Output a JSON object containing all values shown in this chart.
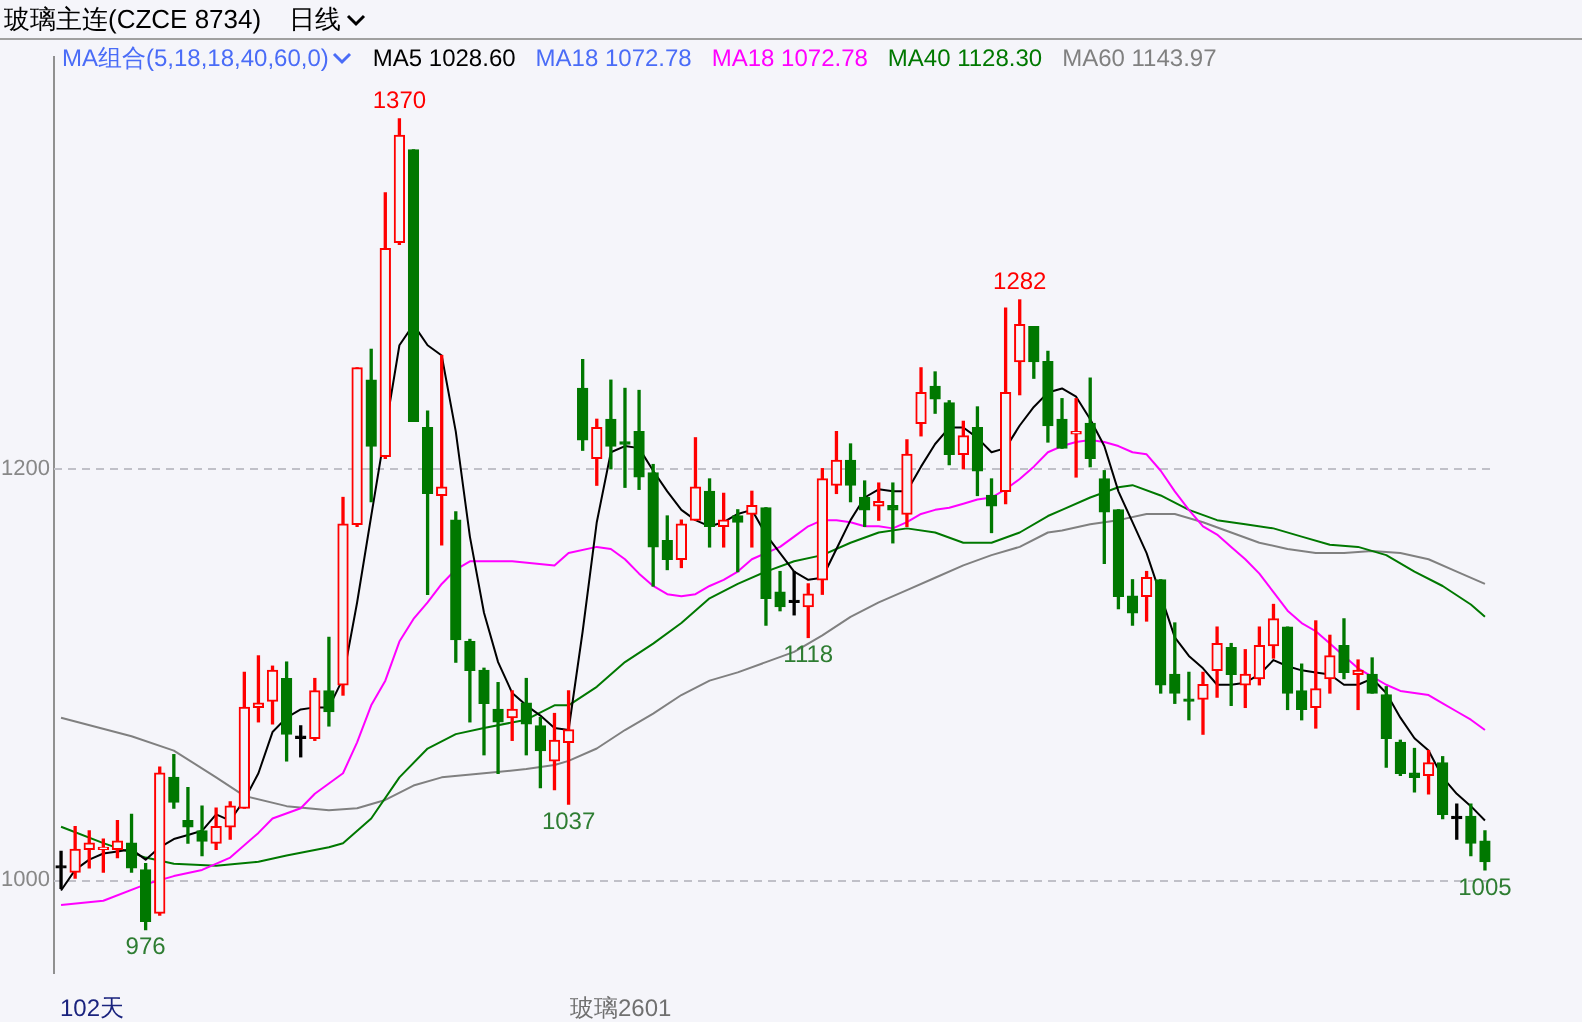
{
  "chart_data": {
    "type": "candlestick",
    "title": "玻璃主连(CZCE 8734)",
    "subtitle": "日线",
    "legend_title": "MA组合(5,18,18,40,60,0)",
    "legend": "top left",
    "grid": "y",
    "marker": "none",
    "tick_labels": "y",
    "categories": [
      null,
      null,
      null,
      null,
      null,
      null,
      null,
      null,
      null,
      null,
      null,
      null,
      null,
      null,
      null,
      null,
      null,
      null,
      null,
      null,
      null,
      null,
      null,
      null,
      null,
      null,
      null,
      null,
      null,
      null,
      null,
      null,
      null,
      null,
      null,
      null,
      null,
      null,
      null,
      null,
      null,
      null,
      null,
      null,
      null,
      null,
      null,
      null,
      null,
      null,
      null,
      null,
      null,
      null,
      null,
      null,
      null,
      null,
      null,
      null,
      null,
      null,
      null,
      null,
      null,
      null,
      null,
      null,
      null,
      null,
      null,
      null,
      null,
      null,
      null,
      null,
      null,
      null,
      null,
      null,
      null,
      null,
      null,
      null,
      null,
      null,
      null,
      null,
      null,
      null,
      null,
      null,
      null,
      null,
      null,
      null,
      null,
      null,
      null,
      null,
      null,
      null
    ],
    "ohlc": [
      [
        1006,
        1014,
        996,
        1006
      ],
      [
        1004,
        1026,
        1001,
        1015
      ],
      [
        1015,
        1024,
        1006,
        1018
      ],
      [
        1015,
        1020,
        1004,
        1016
      ],
      [
        1015,
        1029,
        1011,
        1019
      ],
      [
        1018,
        1032,
        1004,
        1006
      ],
      [
        1005,
        1008,
        976,
        980
      ],
      [
        984,
        1055,
        983,
        1052
      ],
      [
        1050,
        1061,
        1035,
        1038
      ],
      [
        1029,
        1045,
        1018,
        1026
      ],
      [
        1024,
        1036,
        1012,
        1019
      ],
      [
        1018,
        1035,
        1015,
        1026
      ],
      [
        1026,
        1038,
        1020,
        1036
      ],
      [
        1035,
        1101,
        1035,
        1084
      ],
      [
        1084,
        1109,
        1077,
        1086
      ],
      [
        1087,
        1104,
        1076,
        1102
      ],
      [
        1098,
        1106,
        1058,
        1071
      ],
      [
        1069,
        1075,
        1060,
        1069
      ],
      [
        1069,
        1098,
        1068,
        1092
      ],
      [
        1092,
        1118,
        1075,
        1082
      ],
      [
        1095,
        1186,
        1090,
        1173
      ],
      [
        1173,
        1249,
        1172,
        1249
      ],
      [
        1243,
        1258,
        1184,
        1211
      ],
      [
        1206,
        1334,
        1205,
        1307
      ],
      [
        1310,
        1370,
        1309,
        1362
      ],
      [
        1355,
        1355,
        1223,
        1223
      ],
      [
        1220,
        1228,
        1139,
        1188
      ],
      [
        1187,
        1255,
        1163,
        1191
      ],
      [
        1175,
        1179,
        1106,
        1117
      ],
      [
        1116,
        1117,
        1077,
        1102
      ],
      [
        1102,
        1103,
        1061,
        1086
      ],
      [
        1083,
        1096,
        1052,
        1077
      ],
      [
        1079,
        1092,
        1068,
        1083
      ],
      [
        1086,
        1098,
        1061,
        1076
      ],
      [
        1075,
        1079,
        1045,
        1063
      ],
      [
        1058,
        1081,
        1044,
        1068
      ],
      [
        1067,
        1092,
        1037,
        1073
      ],
      [
        1239,
        1253,
        1209,
        1214
      ],
      [
        1205,
        1224,
        1192,
        1220
      ],
      [
        1224,
        1243,
        1200,
        1211
      ],
      [
        1213,
        1239,
        1191,
        1212
      ],
      [
        1218,
        1238,
        1190,
        1196
      ],
      [
        1198,
        1202,
        1143,
        1162
      ],
      [
        1165,
        1177,
        1151,
        1156
      ],
      [
        1156,
        1175,
        1152,
        1173
      ],
      [
        1175,
        1215,
        1175,
        1191
      ],
      [
        1189,
        1195,
        1162,
        1172
      ],
      [
        1172,
        1188,
        1162,
        1175
      ],
      [
        1177,
        1180,
        1150,
        1174
      ],
      [
        1178,
        1189,
        1162,
        1182
      ],
      [
        1181,
        1181,
        1124,
        1137
      ],
      [
        1140,
        1150,
        1131,
        1133
      ],
      [
        1135,
        1150,
        1129,
        1135
      ],
      [
        1133,
        1144,
        1118,
        1139
      ],
      [
        1146,
        1200,
        1139,
        1195
      ],
      [
        1192,
        1218,
        1188,
        1204
      ],
      [
        1204,
        1212,
        1184,
        1192
      ],
      [
        1186,
        1194,
        1172,
        1180
      ],
      [
        1182,
        1193,
        1175,
        1184
      ],
      [
        1182,
        1193,
        1164,
        1180
      ],
      [
        1178,
        1214,
        1172,
        1207
      ],
      [
        1222,
        1249,
        1216,
        1237
      ],
      [
        1240,
        1247,
        1227,
        1234
      ],
      [
        1232,
        1233,
        1202,
        1207
      ],
      [
        1207,
        1223,
        1200,
        1216
      ],
      [
        1220,
        1230,
        1187,
        1199
      ],
      [
        1187,
        1195,
        1169,
        1182
      ],
      [
        1189,
        1278,
        1183,
        1237
      ],
      [
        1252,
        1282,
        1236,
        1270
      ],
      [
        1269,
        1269,
        1244,
        1252
      ],
      [
        1252,
        1257,
        1213,
        1221
      ],
      [
        1224,
        1234,
        1210,
        1210
      ],
      [
        1217,
        1234,
        1196,
        1218
      ],
      [
        1222,
        1244,
        1201,
        1205
      ],
      [
        1195,
        1199,
        1154,
        1179
      ],
      [
        1180,
        1180,
        1132,
        1138
      ],
      [
        1138,
        1146,
        1124,
        1130
      ],
      [
        1138,
        1150,
        1126,
        1147
      ],
      [
        1146,
        1146,
        1091,
        1095
      ],
      [
        1100,
        1125,
        1086,
        1091
      ],
      [
        1088,
        1101,
        1078,
        1087
      ],
      [
        1088,
        1101,
        1071,
        1095
      ],
      [
        1102,
        1123,
        1089,
        1115
      ],
      [
        1113,
        1115,
        1085,
        1100
      ],
      [
        1095,
        1112,
        1084,
        1100
      ],
      [
        1098,
        1123,
        1095,
        1114
      ],
      [
        1114,
        1134,
        1108,
        1127
      ],
      [
        1123,
        1123,
        1083,
        1091
      ],
      [
        1092,
        1105,
        1078,
        1083
      ],
      [
        1084,
        1126,
        1074,
        1093
      ],
      [
        1098,
        1119,
        1091,
        1109
      ],
      [
        1114,
        1127,
        1098,
        1101
      ],
      [
        1100,
        1107,
        1083,
        1102
      ],
      [
        1100,
        1108,
        1091,
        1091
      ],
      [
        1090,
        1094,
        1055,
        1069
      ],
      [
        1067,
        1068,
        1051,
        1052
      ],
      [
        1052,
        1064,
        1043,
        1050
      ],
      [
        1051,
        1063,
        1042,
        1057
      ],
      [
        1057,
        1060,
        1030,
        1032
      ],
      [
        1030,
        1037,
        1020,
        1030
      ],
      [
        1031,
        1037,
        1012,
        1018
      ],
      [
        1019,
        1024,
        1005,
        1009
      ]
    ],
    "colors": [
      "#000000",
      "#ff0000",
      "#ff0000",
      "#ff0000",
      "#ff0000",
      "#007800",
      "#007800",
      "#ff0000",
      "#007800",
      "#007800",
      "#007800",
      "#ff0000",
      "#ff0000",
      "#ff0000",
      "#ff0000",
      "#ff0000",
      "#007800",
      "#000000",
      "#ff0000",
      "#007800",
      "#ff0000",
      "#ff0000",
      "#007800",
      "#ff0000",
      "#ff0000",
      "#007800",
      "#007800",
      "#ff0000",
      "#007800",
      "#007800",
      "#007800",
      "#007800",
      "#ff0000",
      "#007800",
      "#007800",
      "#ff0000",
      "#ff0000",
      "#007800",
      "#ff0000",
      "#007800",
      "#007800",
      "#007800",
      "#007800",
      "#007800",
      "#ff0000",
      "#ff0000",
      "#007800",
      "#ff0000",
      "#007800",
      "#ff0000",
      "#007800",
      "#007800",
      "#000000",
      "#ff0000",
      "#ff0000",
      "#ff0000",
      "#007800",
      "#007800",
      "#ff0000",
      "#007800",
      "#ff0000",
      "#ff0000",
      "#007800",
      "#007800",
      "#ff0000",
      "#007800",
      "#007800",
      "#ff0000",
      "#ff0000",
      "#007800",
      "#007800",
      "#007800",
      "#ff0000",
      "#007800",
      "#007800",
      "#007800",
      "#007800",
      "#ff0000",
      "#007800",
      "#007800",
      "#007800",
      "#ff0000",
      "#ff0000",
      "#007800",
      "#ff0000",
      "#ff0000",
      "#ff0000",
      "#007800",
      "#007800",
      "#ff0000",
      "#ff0000",
      "#007800",
      "#ff0000",
      "#007800",
      "#007800",
      "#007800",
      "#007800",
      "#ff0000",
      "#007800",
      "#000000",
      "#007800",
      "#007800"
    ],
    "series": [
      {
        "type": "line",
        "name": "MA5 1028.60",
        "color": "#000000",
        "values": [
          995,
          1005,
          1010,
          1013,
          1014,
          1015,
          1010,
          1016,
          1020,
          1022,
          1024,
          1032,
          1029,
          1039,
          1052,
          1072,
          1079,
          1083,
          1084,
          1084,
          1098,
          1135,
          1177,
          null,
          1260,
          1270,
          1260,
          1255,
          1218,
          1167,
          1130,
          1106,
          1091,
          1085,
          1080,
          1074,
          1073,
          1121,
          1174,
          1208,
          1211,
          1210,
          1199,
          1189,
          1180,
          1175,
          1172,
          1174,
          1178,
          1180,
          1168,
          1159,
          1150,
          1146,
          1147,
          1161,
          1175,
          1186,
          1190,
          1189,
          1189,
          1201,
          1212,
          1220,
          1220,
          1215,
          1208,
          1210,
          1221,
          1230,
          1237,
          1239,
          1235,
          1224,
          1211,
          1189,
          1174,
          1159,
          null,
          1118,
          1109,
          1103,
          1095,
          1095,
          1096,
          1100,
          1107,
          1104,
          1102,
          1101,
          1100,
          1095,
          1095,
          1098,
          1091,
          1079,
          1069,
          1063,
          1050,
          1042,
          1036,
          1029
        ]
      },
      {
        "type": "line",
        "name": "MA18 1072.78",
        "color": "#4a6cf7",
        "values": [
          null,
          null,
          null,
          null,
          null,
          null,
          null,
          null,
          null,
          null,
          null,
          null,
          null,
          null,
          null,
          null,
          null,
          null,
          null,
          null,
          null,
          null,
          null,
          null,
          null,
          null,
          null,
          null,
          null,
          null,
          null,
          null,
          null,
          null,
          null,
          null,
          null,
          null,
          null,
          null,
          null,
          null,
          null,
          null,
          null,
          null,
          null,
          null,
          null,
          null,
          null,
          null,
          null,
          null,
          null,
          null,
          null,
          null,
          null,
          null,
          null,
          null,
          null,
          null,
          null,
          null,
          null,
          null,
          null,
          null,
          null,
          null,
          null,
          null,
          null,
          null,
          null,
          null,
          null,
          null,
          null,
          null,
          null,
          null,
          null,
          null,
          null,
          null,
          null,
          null,
          null,
          null,
          null,
          null,
          null,
          null,
          null,
          null,
          null,
          null,
          null,
          null
        ]
      },
      {
        "type": "line",
        "name": "MA18 1072.78",
        "color": "#ff00ff",
        "values": [
          988,
          null,
          null,
          990,
          null,
          null,
          998,
          null,
          1002,
          null,
          1005,
          null,
          1011,
          null,
          1023,
          1030,
          null,
          1035,
          1042,
          1047,
          1052,
          1067,
          1085,
          1097,
          1116,
          1127,
          1135,
          1144,
          1151,
          1155,
          1155,
          null,
          1155,
          null,
          null,
          1153,
          1159,
          null,
          1162,
          1161,
          1156,
          1149,
          1143,
          1139,
          1138,
          1139,
          1143,
          1146,
          1150,
          1156,
          1159,
          1162,
          1167,
          1172,
          1175,
          1175,
          1174,
          1172,
          1172,
          1171,
          1174,
          1178,
          1180,
          1181,
          1183,
          1185,
          1186,
          1190,
          1195,
          1201,
          1208,
          1211,
          1213,
          1214,
          1213,
          1211,
          1208,
          1207,
          1199,
          1189,
          1180,
          1172,
          1168,
          1162,
          1156,
          1149,
          1140,
          1131,
          1125,
          1121,
          1115,
          1109,
          1103,
          1099,
          1095,
          1092,
          1091,
          1090,
          1086,
          1082,
          1078,
          1073
        ]
      },
      {
        "type": "line",
        "name": "MA40 1128.30",
        "color": "#007800",
        "values": [
          1026,
          null,
          null,
          1018,
          null,
          null,
          1011,
          null,
          1008,
          null,
          null,
          1007,
          null,
          null,
          1009,
          null,
          1012,
          null,
          null,
          1016,
          1018,
          null,
          1030,
          null,
          1050,
          null,
          1064,
          null,
          1071,
          null,
          1074,
          null,
          null,
          1078,
          null,
          1085,
          1085,
          null,
          1094,
          null,
          1106,
          null,
          1115,
          null,
          1125,
          null,
          1137,
          null,
          1144,
          null,
          1150,
          null,
          1155,
          null,
          1158,
          null,
          1164,
          null,
          1169,
          null,
          1171,
          null,
          1169,
          null,
          1164,
          null,
          1164,
          null,
          1169,
          null,
          1177,
          1180,
          null,
          1186,
          null,
          1191,
          1192,
          null,
          1187,
          null,
          1180,
          null,
          1175,
          null,
          1173,
          null,
          1171,
          null,
          1167,
          null,
          1163,
          null,
          1162,
          null,
          1158,
          null,
          1150,
          null,
          1143,
          null,
          1134,
          1128
        ]
      },
      {
        "type": "line",
        "name": "MA60 1143.97",
        "color": "#808080",
        "values": [
          1079,
          null,
          null,
          null,
          null,
          1070,
          null,
          null,
          1063,
          null,
          null,
          1050,
          null,
          1041,
          null,
          null,
          1036,
          null,
          null,
          1034,
          null,
          1035,
          null,
          1039,
          null,
          1046,
          null,
          1050,
          null,
          null,
          1052,
          null,
          null,
          1054,
          null,
          1056,
          1058,
          null,
          1064,
          null,
          1073,
          null,
          1081,
          null,
          1090,
          null,
          1097,
          null,
          1101,
          null,
          1106,
          null,
          1111,
          null,
          1119,
          null,
          1128,
          null,
          1135,
          null,
          1141,
          null,
          1147,
          null,
          1153,
          null,
          1158,
          null,
          1162,
          null,
          1169,
          1170,
          null,
          1173,
          null,
          1175,
          null,
          1178,
          null,
          1178,
          null,
          1174,
          null,
          1169,
          null,
          1164,
          null,
          1161,
          null,
          1159,
          null,
          1159,
          null,
          1160,
          null,
          1159,
          null,
          1156,
          null,
          1150,
          null,
          1144
        ]
      }
    ],
    "ylim": [
      955,
      1400
    ],
    "yticks": [
      1000,
      1200
    ],
    "annotations": [
      {
        "text": "1370",
        "y": 1370
      },
      {
        "text": "1282",
        "y": 1282
      },
      {
        "text": "1118",
        "y": 1118
      },
      {
        "text": "1037",
        "y": 1037
      },
      {
        "text": "976",
        "y": 976
      },
      {
        "text": "1005",
        "y": 1005
      },
      "102天",
      "玻璃2601"
    ]
  }
}
